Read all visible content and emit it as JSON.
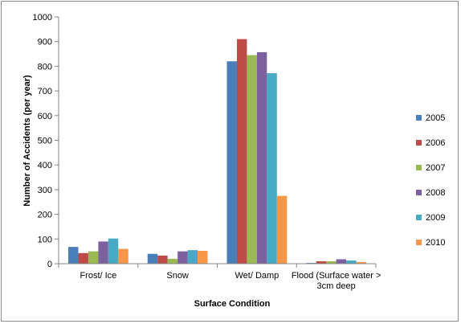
{
  "chart_data": {
    "type": "bar",
    "title": "",
    "xlabel": "Surface Condition",
    "ylabel": "Number of Accidents (per year)",
    "ylim": [
      0,
      1000
    ],
    "yticks": [
      0,
      100,
      200,
      300,
      400,
      500,
      600,
      700,
      800,
      900,
      1000
    ],
    "categories": [
      [
        "Frost/ Ice"
      ],
      [
        "Snow"
      ],
      [
        "Wet/ Damp"
      ],
      [
        "Flood (Surface water >",
        "3cm deep"
      ]
    ],
    "series": [
      {
        "name": "2005",
        "color": "#4a7ebb",
        "values": [
          68,
          40,
          820,
          3
        ]
      },
      {
        "name": "2006",
        "color": "#be4b48",
        "values": [
          43,
          33,
          910,
          10
        ]
      },
      {
        "name": "2007",
        "color": "#98b954",
        "values": [
          50,
          20,
          845,
          10
        ]
      },
      {
        "name": "2008",
        "color": "#7d60a0",
        "values": [
          90,
          50,
          857,
          18
        ]
      },
      {
        "name": "2009",
        "color": "#46aac5",
        "values": [
          102,
          55,
          772,
          13
        ]
      },
      {
        "name": "2010",
        "color": "#f79646",
        "values": [
          60,
          52,
          275,
          7
        ]
      }
    ],
    "grid": false,
    "legend": "right"
  }
}
